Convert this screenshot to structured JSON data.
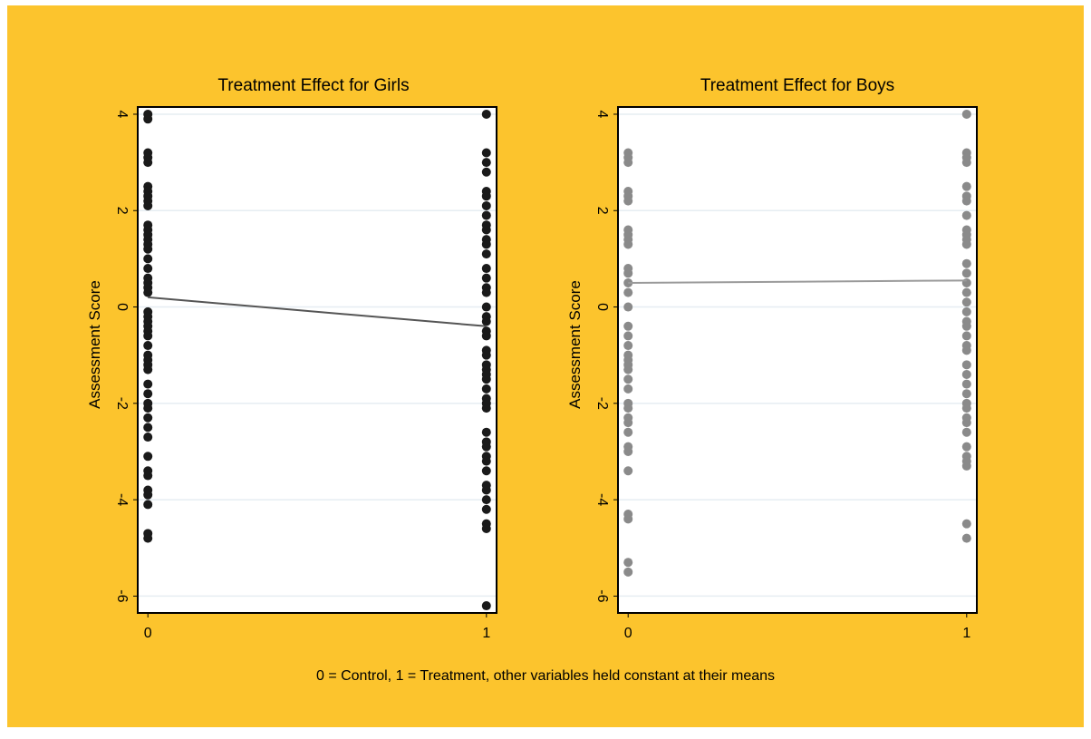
{
  "background_color": "#FCC42D",
  "caption": "0 = Control, 1 = Treatment, other variables held constant at their means",
  "chart_data": [
    {
      "type": "scatter",
      "title": "Treatment Effect for Girls",
      "ylabel": "Assessment Score",
      "xlabel": "",
      "x_ticks": [
        0,
        1
      ],
      "y_ticks": [
        -6,
        -4,
        -2,
        0,
        2,
        4
      ],
      "xlim": [
        -0.03,
        1.03
      ],
      "ylim": [
        -6.35,
        4.15
      ],
      "grid": true,
      "point_color": "#1a1a1a",
      "line_color": "#555555",
      "fit_line": {
        "x": [
          0,
          1
        ],
        "y": [
          0.2,
          -0.4
        ]
      },
      "series": [
        {
          "x": 0,
          "values": [
            4.0,
            3.9,
            3.2,
            3.1,
            3.0,
            2.5,
            2.4,
            2.3,
            2.2,
            2.1,
            1.7,
            1.6,
            1.5,
            1.4,
            1.3,
            1.2,
            1.0,
            0.8,
            0.6,
            0.5,
            0.4,
            0.3,
            -0.1,
            -0.2,
            -0.3,
            -0.4,
            -0.5,
            -0.6,
            -0.8,
            -1.0,
            -1.1,
            -1.2,
            -1.3,
            -1.6,
            -1.8,
            -2.0,
            -2.1,
            -2.3,
            -2.5,
            -2.7,
            -3.1,
            -3.4,
            -3.5,
            -3.8,
            -3.9,
            -4.1,
            -4.7,
            -4.8
          ]
        },
        {
          "x": 1,
          "values": [
            4.0,
            3.2,
            3.0,
            2.8,
            2.4,
            2.3,
            2.1,
            1.9,
            1.7,
            1.6,
            1.4,
            1.3,
            1.1,
            0.8,
            0.6,
            0.4,
            0.3,
            0.0,
            -0.2,
            -0.3,
            -0.5,
            -0.6,
            -0.9,
            -1.0,
            -1.2,
            -1.3,
            -1.4,
            -1.5,
            -1.7,
            -1.9,
            -2.0,
            -2.1,
            -2.6,
            -2.8,
            -2.9,
            -3.1,
            -3.2,
            -3.4,
            -3.7,
            -3.8,
            -4.0,
            -4.2,
            -4.5,
            -4.6,
            -6.2
          ]
        }
      ]
    },
    {
      "type": "scatter",
      "title": "Treatment Effect for Boys",
      "ylabel": "Assessment Score",
      "xlabel": "",
      "x_ticks": [
        0,
        1
      ],
      "y_ticks": [
        -6,
        -4,
        -2,
        0,
        2,
        4
      ],
      "xlim": [
        -0.03,
        1.03
      ],
      "ylim": [
        -6.35,
        4.15
      ],
      "grid": true,
      "point_color": "#8a8a8a",
      "line_color": "#9a9a9a",
      "fit_line": {
        "x": [
          0,
          1
        ],
        "y": [
          0.5,
          0.55
        ]
      },
      "series": [
        {
          "x": 0,
          "values": [
            3.2,
            3.1,
            3.0,
            2.4,
            2.3,
            2.2,
            1.6,
            1.5,
            1.4,
            1.3,
            0.8,
            0.7,
            0.5,
            0.3,
            0.0,
            -0.4,
            -0.6,
            -0.8,
            -1.0,
            -1.1,
            -1.2,
            -1.3,
            -1.5,
            -1.7,
            -2.0,
            -2.1,
            -2.3,
            -2.4,
            -2.6,
            -2.9,
            -3.0,
            -3.4,
            -4.3,
            -4.4,
            -5.3,
            -5.5
          ]
        },
        {
          "x": 1,
          "values": [
            4.0,
            3.2,
            3.1,
            3.0,
            2.5,
            2.3,
            2.2,
            1.9,
            1.6,
            1.5,
            1.4,
            1.3,
            0.9,
            0.7,
            0.5,
            0.3,
            0.1,
            -0.1,
            -0.3,
            -0.4,
            -0.6,
            -0.8,
            -0.9,
            -1.2,
            -1.4,
            -1.6,
            -1.8,
            -2.0,
            -2.1,
            -2.3,
            -2.4,
            -2.6,
            -2.9,
            -3.1,
            -3.2,
            -3.3,
            -4.5,
            -4.8
          ]
        }
      ]
    }
  ]
}
